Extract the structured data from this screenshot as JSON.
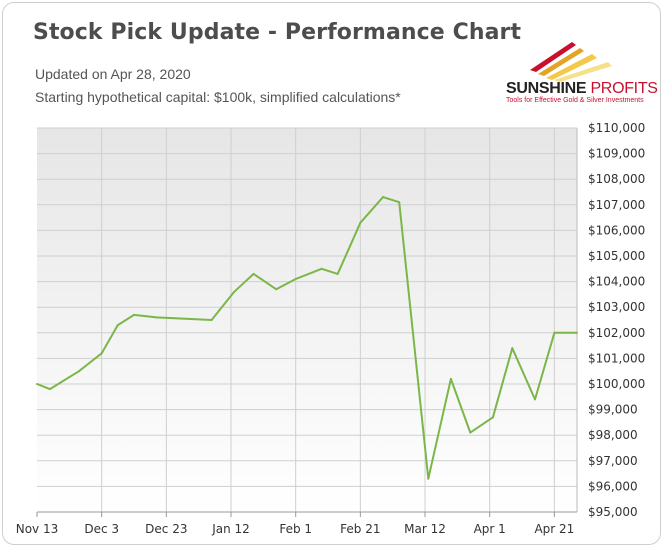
{
  "header": {
    "title": "Stock Pick Update - Performance Chart",
    "updated": "Updated on Apr 28, 2020",
    "note": "Starting hypothetical capital: $100k, simplified calculations*"
  },
  "logo": {
    "brand_main": "SUNSHINE",
    "brand_second": "PROFITS",
    "tagline": "Tools for Effective Gold & Silver Investments"
  },
  "colors": {
    "line": "#7ab648",
    "plot_bg_top": "#e6e6e6",
    "plot_bg_bottom": "#ffffff",
    "brand_red": "#c8102e"
  },
  "chart_data": {
    "type": "line",
    "title": "Stock Pick Update - Performance Chart",
    "xlabel": "",
    "ylabel": "",
    "ylim": [
      95000,
      110000
    ],
    "yticks": [
      95000,
      96000,
      97000,
      98000,
      99000,
      100000,
      101000,
      102000,
      103000,
      104000,
      105000,
      106000,
      107000,
      108000,
      109000,
      110000
    ],
    "ytick_labels": [
      "$95,000",
      "$96,000",
      "$97,000",
      "$98,000",
      "$99,000",
      "$100,000",
      "$101,000",
      "$102,000",
      "$103,000",
      "$104,000",
      "$105,000",
      "$106,000",
      "$107,000",
      "$108,000",
      "$109,000",
      "$110,000"
    ],
    "xticks": [
      "2019-11-13",
      "2019-12-03",
      "2019-12-23",
      "2020-01-12",
      "2020-02-01",
      "2020-02-21",
      "2020-03-12",
      "2020-04-01",
      "2020-04-21"
    ],
    "xtick_labels": [
      "Nov 13",
      "Dec 3",
      "Dec 23",
      "Jan 12",
      "Feb 1",
      "Feb 21",
      "Mar 12",
      "Apr 1",
      "Apr 21"
    ],
    "xlim": [
      "2019-11-13",
      "2020-04-28"
    ],
    "grid": true,
    "series": [
      {
        "x": [
          "2019-11-13",
          "2019-11-17",
          "2019-11-26",
          "2019-11-29",
          "2019-12-03",
          "2019-12-08",
          "2019-12-13",
          "2019-12-20",
          "2020-01-06",
          "2020-01-13",
          "2020-01-19",
          "2020-01-26",
          "2020-02-01",
          "2020-02-09",
          "2020-02-14",
          "2020-02-21",
          "2020-02-28",
          "2020-03-04",
          "2020-03-13",
          "2020-03-20",
          "2020-03-26",
          "2020-04-02",
          "2020-04-08",
          "2020-04-15",
          "2020-04-21",
          "2020-04-28"
        ],
        "values": [
          100000,
          99800,
          100500,
          100800,
          101200,
          102300,
          102700,
          102600,
          102500,
          103600,
          104300,
          103700,
          104100,
          104500,
          104300,
          106300,
          107300,
          107100,
          96300,
          100200,
          98100,
          98700,
          101400,
          99400,
          102000,
          102000
        ]
      }
    ]
  }
}
